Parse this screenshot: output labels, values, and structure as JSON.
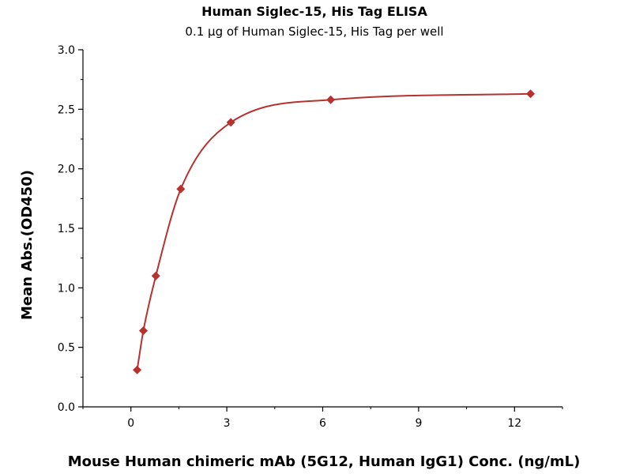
{
  "chart_data": {
    "type": "scatter",
    "title": "Human Siglec-15, His Tag ELISA",
    "subtitle": "0.1 μg of Human Siglec-15, His Tag per well",
    "xlabel": "Mouse Human chimeric mAb (5G12, Human IgG1) Conc. (ng/mL)",
    "ylabel": "Mean Abs.(OD450)",
    "xlim": [
      -1.5,
      13.5
    ],
    "ylim": [
      0,
      3
    ],
    "xticks": [
      0,
      3,
      6,
      9,
      12
    ],
    "yticks": [
      0.0,
      0.5,
      1.0,
      1.5,
      2.0,
      2.5,
      3.0
    ],
    "xtick_labels": [
      "0",
      "3",
      "6",
      "9",
      "12"
    ],
    "ytick_labels": [
      "0.0",
      "0.5",
      "1.0",
      "1.5",
      "2.0",
      "2.5",
      "3.0"
    ],
    "grid": false,
    "series": [
      {
        "color": "#b5322f",
        "marker": "diamond",
        "fit_line": true,
        "x": [
          0.195,
          0.39,
          0.78,
          1.56,
          3.125,
          6.25,
          12.5
        ],
        "y": [
          0.31,
          0.64,
          1.1,
          1.83,
          2.39,
          2.58,
          2.63
        ]
      }
    ]
  }
}
